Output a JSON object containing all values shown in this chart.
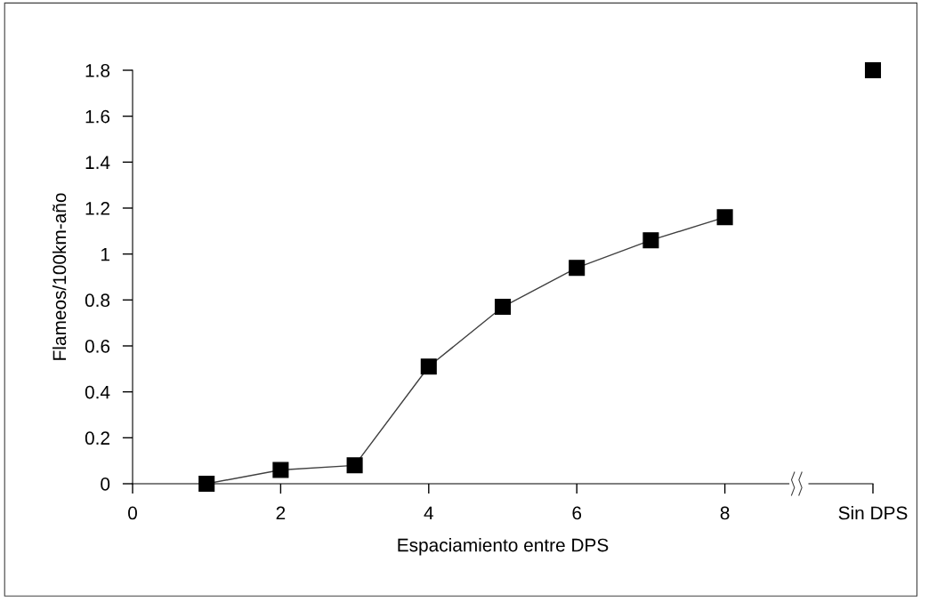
{
  "chart_data": {
    "type": "line",
    "xlabel": "Espaciamiento entre DPS",
    "ylabel": "Flameos/100km-año",
    "xlim": [
      0,
      10
    ],
    "xticks": [
      0,
      2,
      4,
      6,
      8,
      {
        "value": 10,
        "label": "Sin DPS"
      }
    ],
    "ylim": [
      0,
      1.8
    ],
    "yticks": [
      0,
      0.2,
      0.4,
      0.6,
      0.8,
      1,
      1.2,
      1.4,
      1.6,
      1.8
    ],
    "marker": "square",
    "grid": false,
    "legend": false,
    "series": [
      {
        "color": "#000000",
        "x": [
          1,
          2,
          3,
          4,
          5,
          6,
          7,
          8
        ],
        "values": [
          0,
          0.06,
          0.08,
          0.51,
          0.77,
          0.94,
          1.06,
          1.16
        ]
      },
      {
        "type": "scatter",
        "color": "#000000",
        "x": [
          10
        ],
        "values": [
          1.8
        ]
      }
    ]
  }
}
